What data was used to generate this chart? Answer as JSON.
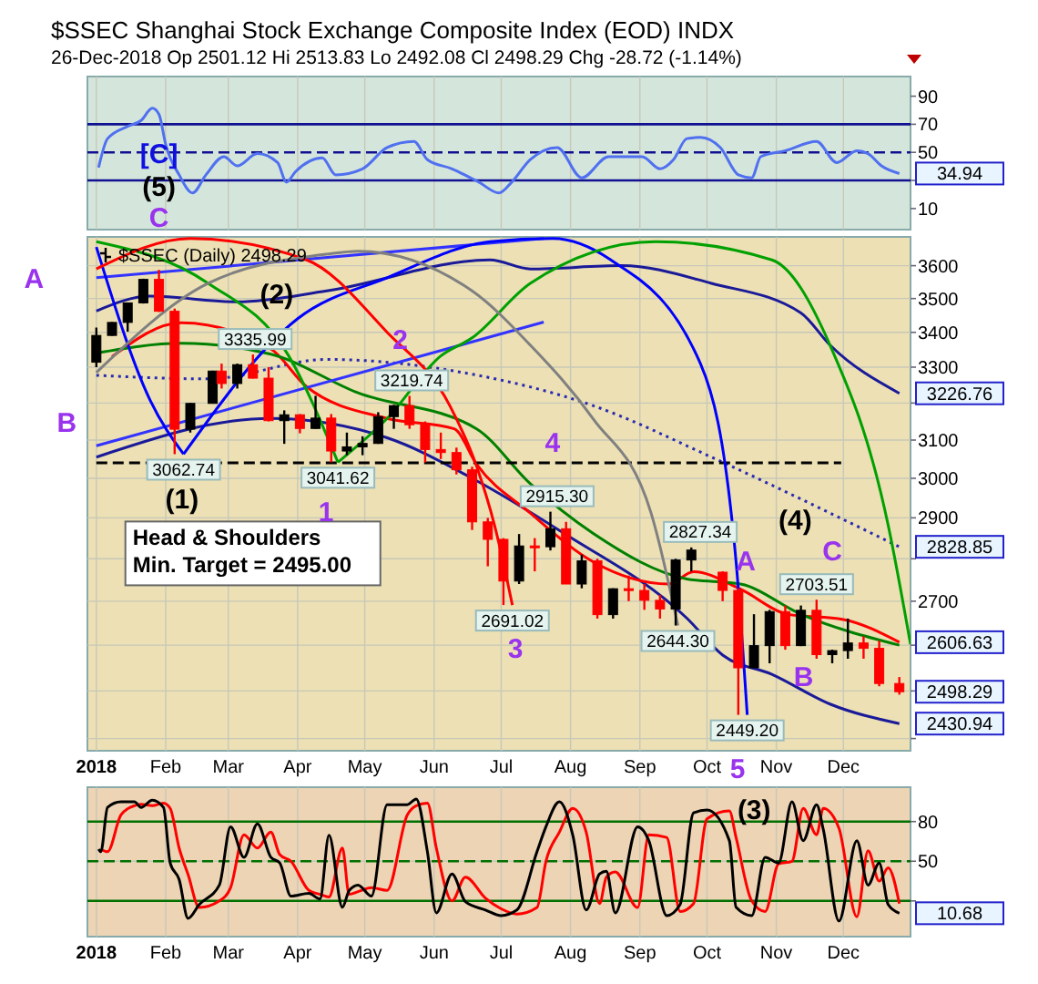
{
  "chart_data": [
    {
      "type": "line",
      "title": "$SSEC Shanghai Stock Exchange Composite Index (EOD)  INDX",
      "subtitle": "26-Dec-2018          Op 2501.12  Hi 2513.83  Lo 2492.08  Cl 2498.29  Chg -28.72 (-1.14%)",
      "xlim": [
        "2017-12-28",
        "2018-12-31"
      ],
      "ylim": [
        -5,
        104
      ],
      "yticks": [
        10,
        {
          "value": 30,
          "label": null
        },
        50,
        70,
        90
      ],
      "xticks": [
        {
          "value": "2018-01-01",
          "label": null
        },
        {
          "value": "2018-02-01",
          "label": null
        },
        {
          "value": "2018-03-01",
          "label": null
        },
        {
          "value": "2018-04-01",
          "label": null
        },
        {
          "value": "2018-05-01",
          "label": null
        },
        {
          "value": "2018-06-01",
          "label": null
        },
        {
          "value": "2018-07-01",
          "label": null
        },
        {
          "value": "2018-08-01",
          "label": null
        },
        {
          "value": "2018-09-01",
          "label": null
        },
        {
          "value": "2018-10-01",
          "label": null
        },
        {
          "value": "2018-11-01",
          "label": null
        },
        {
          "value": "2018-12-01",
          "label": null
        }
      ],
      "tick_labels": "y",
      "grid": "x",
      "ref_lines": [
        {
          "axis": "y",
          "value": 70,
          "color": "#101090"
        },
        {
          "axis": "y",
          "value": 30,
          "color": "#101090"
        },
        {
          "axis": "y",
          "value": 50,
          "color": "#101090",
          "line_style": "dashed"
        }
      ],
      "series": [
        {
          "color": "#5070f0",
          "x": [
            "2018-01-02",
            "2018-01-06",
            "2018-01-15",
            "2018-01-21",
            "2018-01-26",
            "2018-01-29",
            "2018-02-01",
            "2018-02-07",
            "2018-02-13",
            "2018-02-19",
            "2018-02-27",
            "2018-03-05",
            "2018-03-14",
            "2018-03-23",
            "2018-03-27",
            "2018-03-31",
            "2018-04-12",
            "2018-04-18",
            "2018-04-30",
            "2018-05-11",
            "2018-05-23",
            "2018-05-29",
            "2018-06-09",
            "2018-06-21",
            "2018-06-30",
            "2018-07-05",
            "2018-07-14",
            "2018-07-26",
            "2018-08-06",
            "2018-08-18",
            "2018-09-02",
            "2018-09-10",
            "2018-09-16",
            "2018-09-22",
            "2018-09-28",
            "2018-10-07",
            "2018-10-15",
            "2018-10-21",
            "2018-10-25",
            "2018-11-05",
            "2018-11-19",
            "2018-11-28",
            "2018-12-07",
            "2018-12-12",
            "2018-12-18",
            "2018-12-26"
          ],
          "values": [
            39.2,
            59.8,
            68.5,
            72.7,
            81.4,
            77.1,
            55.6,
            34.0,
            21.1,
            34.0,
            46.9,
            40.4,
            49.1,
            42.7,
            28.8,
            36.2,
            46.1,
            34.0,
            38.3,
            53.4,
            57.7,
            44.8,
            38.3,
            28.8,
            21.1,
            27.5,
            44.8,
            53.4,
            31.9,
            46.9,
            46.9,
            38.3,
            44.8,
            59.8,
            60.7,
            53.4,
            34.0,
            31.9,
            46.9,
            51.2,
            57.7,
            42.7,
            51.2,
            49.1,
            40.4,
            34.94
          ]
        }
      ],
      "annotations": [
        {
          "text": "34.94",
          "x": "2018-12-26",
          "y": 34.94
        },
        "[C]",
        "(5)",
        "C"
      ]
    },
    {
      "type": "candlestick",
      "log": true,
      "xlim": [
        "2017-12-28",
        "2018-12-31"
      ],
      "ylim": [
        2375,
        3690
      ],
      "yticks": [
        {
          "value": 2400,
          "label": null
        },
        {
          "value": 2500,
          "label": null
        },
        {
          "value": 2600,
          "label": null
        },
        2700,
        {
          "value": 2800,
          "label": null
        },
        2900,
        3000,
        3100,
        {
          "value": 3200,
          "label": null
        },
        3300,
        3400,
        3500,
        3600
      ],
      "xticks": [
        {
          "value": "2018-01-01",
          "label": "2018"
        },
        {
          "value": "2018-02-01",
          "label": "Feb"
        },
        {
          "value": "2018-03-01",
          "label": "Mar"
        },
        {
          "value": "2018-04-01",
          "label": "Apr"
        },
        {
          "value": "2018-05-01",
          "label": "May"
        },
        {
          "value": "2018-06-01",
          "label": "Jun"
        },
        {
          "value": "2018-07-01",
          "label": "Jul"
        },
        {
          "value": "2018-08-01",
          "label": "Aug"
        },
        {
          "value": "2018-09-01",
          "label": "Sep"
        },
        {
          "value": "2018-10-01",
          "label": "Oct"
        },
        {
          "value": "2018-11-01",
          "label": "Nov"
        },
        {
          "value": "2018-12-01",
          "label": "Dec"
        }
      ],
      "grid": true,
      "legend": "top left",
      "series": [
        {
          "name": "$SSEC (Daily) 2498.29",
          "color": "#000000",
          "x": [
            "2018-01-01",
            "2018-01-08",
            "2018-01-15",
            "2018-01-22",
            "2018-01-29",
            "2018-02-05",
            "2018-02-12",
            "2018-02-22",
            "2018-02-26",
            "2018-03-05",
            "2018-03-12",
            "2018-03-19",
            "2018-03-26",
            "2018-04-02",
            "2018-04-09",
            "2018-04-16",
            "2018-04-23",
            "2018-04-30",
            "2018-05-07",
            "2018-05-14",
            "2018-05-21",
            "2018-05-28",
            "2018-06-04",
            "2018-06-11",
            "2018-06-18",
            "2018-06-25",
            "2018-07-02",
            "2018-07-09",
            "2018-07-16",
            "2018-07-23",
            "2018-07-30",
            "2018-08-06",
            "2018-08-13",
            "2018-08-20",
            "2018-08-27",
            "2018-09-03",
            "2018-09-10",
            "2018-09-17",
            "2018-09-24",
            "2018-10-08",
            "2018-10-15",
            "2018-10-22",
            "2018-10-29",
            "2018-11-05",
            "2018-11-12",
            "2018-11-19",
            "2018-11-26",
            "2018-12-03",
            "2018-12-10",
            "2018-12-17",
            "2018-12-26"
          ],
          "ohlc": [
            [
              3314,
              3414,
              3300,
              3391
            ],
            [
              3391,
              3430,
              3390,
              3429
            ],
            [
              3429,
              3487,
              3402,
              3487
            ],
            [
              3487,
              3560,
              3485,
              3558
            ],
            [
              3558,
              3587,
              3460,
              3462
            ],
            [
              3462,
              3470,
              3062.74,
              3129
            ],
            [
              3129,
              3200,
              3120,
              3199
            ],
            [
              3199,
              3290,
              3199,
              3289
            ],
            [
              3289,
              3310,
              3240,
              3254
            ],
            [
              3254,
              3310,
              3240,
              3307
            ],
            [
              3307,
              3335.99,
              3268,
              3269
            ],
            [
              3269,
              3300,
              3150,
              3152
            ],
            [
              3152,
              3180,
              3090,
              3168
            ],
            [
              3168,
              3170,
              3118,
              3131
            ],
            [
              3131,
              3220,
              3130,
              3159
            ],
            [
              3159,
              3170,
              3041.62,
              3071
            ],
            [
              3071,
              3120,
              3060,
              3082
            ],
            [
              3082,
              3110,
              3060,
              3091
            ],
            [
              3091,
              3175,
              3090,
              3163
            ],
            [
              3163,
              3195,
              3130,
              3193
            ],
            [
              3193,
              3219.74,
              3130,
              3141
            ],
            [
              3141,
              3150,
              3041,
              3075
            ],
            [
              3075,
              3120,
              3050,
              3067
            ],
            [
              3067,
              3080,
              3010,
              3022
            ],
            [
              3022,
              3030,
              2870,
              2890
            ],
            [
              2890,
              2900,
              2782,
              2847
            ],
            [
              2847,
              2850,
              2691.02,
              2747
            ],
            [
              2747,
              2860,
              2740,
              2831
            ],
            [
              2831,
              2850,
              2770,
              2829
            ],
            [
              2829,
              2915.3,
              2820,
              2873
            ],
            [
              2873,
              2890,
              2740,
              2740
            ],
            [
              2740,
              2810,
              2730,
              2795
            ],
            [
              2795,
              2800,
              2660,
              2669
            ],
            [
              2669,
              2730,
              2660,
              2729
            ],
            [
              2729,
              2760,
              2700,
              2725
            ],
            [
              2725,
              2740,
              2680,
              2702
            ],
            [
              2702,
              2715,
              2660,
              2682
            ],
            [
              2682,
              2800,
              2644.3,
              2797
            ],
            [
              2797,
              2827.34,
              2770,
              2821
            ],
            [
              2768,
              2770,
              2700,
              2725
            ],
            [
              2725,
              2730,
              2449.2,
              2550
            ],
            [
              2550,
              2670,
              2550,
              2599
            ],
            [
              2599,
              2680,
              2560,
              2676
            ],
            [
              2676,
              2690,
              2590,
              2599
            ],
            [
              2599,
              2690,
              2598,
              2679
            ],
            [
              2679,
              2703.51,
              2570,
              2579
            ],
            [
              2579,
              2590,
              2560,
              2588
            ],
            [
              2588,
              2660,
              2570,
              2605
            ],
            [
              2605,
              2620,
              2570,
              2593
            ],
            [
              2593,
              2610,
              2510,
              2516
            ],
            [
              2516,
              2530,
              2492.08,
              2498.29
            ]
          ],
          "colors": [
            "#000000",
            "#000000",
            "#000000",
            "#000000",
            "#ff0000",
            "#ff0000",
            "#000000",
            "#000000",
            "#ff0000",
            "#000000",
            "#ff0000",
            "#ff0000",
            "#000000",
            "#ff0000",
            "#000000",
            "#ff0000",
            "#000000",
            "#000000",
            "#000000",
            "#000000",
            "#ff0000",
            "#ff0000",
            "#ff0000",
            "#ff0000",
            "#ff0000",
            "#ff0000",
            "#ff0000",
            "#000000",
            "#ff0000",
            "#000000",
            "#ff0000",
            "#000000",
            "#ff0000",
            "#000000",
            "#ff0000",
            "#ff0000",
            "#ff0000",
            "#000000",
            "#000000",
            "#ff0000",
            "#ff0000",
            "#000000",
            "#000000",
            "#ff0000",
            "#000000",
            "#ff0000",
            "#000000",
            "#000000",
            "#ff0000",
            "#ff0000",
            "#ff0000"
          ]
        },
        {
          "type": "line",
          "color": "#1a1a99",
          "x": [
            "2018-01-01",
            "2018-01-25",
            "2018-03-05",
            "2018-04-14",
            "2018-06-26",
            "2018-07-14",
            "2018-08-24",
            "2018-10-03",
            "2018-11-12",
            "2018-11-25",
            "2018-12-26"
          ],
          "values": [
            3463,
            3507,
            3490,
            3523,
            3618,
            3590,
            3600,
            3546,
            3457,
            3363,
            3226.76
          ]
        },
        {
          "type": "line",
          "color": "#2a2ab0",
          "line_style": "dotted",
          "x": [
            "2018-01-01",
            "2018-02-20",
            "2018-04-14",
            "2018-06-18",
            "2018-08-11",
            "2018-10-03",
            "2018-11-25",
            "2018-12-26"
          ],
          "values": [
            3277,
            3267,
            3322,
            3280,
            3193,
            3055,
            2912,
            2828.85
          ]
        },
        {
          "type": "line",
          "color": "#1a1a99",
          "x": [
            "2018-01-01",
            "2018-03-20",
            "2018-05-11",
            "2018-06-18",
            "2018-07-29",
            "2018-09-22",
            "2018-10-08",
            "2018-10-30",
            "2018-11-25",
            "2018-12-26"
          ],
          "values": [
            3055,
            3158,
            3106,
            3000,
            2862,
            2661,
            2578,
            2536,
            2472,
            2430.94
          ]
        },
        {
          "type": "line",
          "color": "#ff0000",
          "x": [
            "2018-01-08",
            "2018-02-08",
            "2018-03-20",
            "2018-04-05",
            "2018-05-11",
            "2018-06-10",
            "2018-06-20",
            "2018-07-14",
            "2018-08-11",
            "2018-09-14",
            "2018-09-25",
            "2018-10-16",
            "2018-11-06",
            "2018-12-01",
            "2018-12-26"
          ],
          "values": [
            3330,
            3428,
            3352,
            3245,
            3158,
            3130,
            3036,
            2912,
            2793,
            2740,
            2769,
            2728,
            2670,
            2658,
            2606.63
          ]
        },
        {
          "type": "line",
          "color": "#008000",
          "x": [
            "2018-01-01",
            "2018-02-08",
            "2018-03-20",
            "2018-04-28",
            "2018-06-20",
            "2018-07-14",
            "2018-08-11",
            "2018-09-22",
            "2018-10-16",
            "2018-11-12",
            "2018-12-26"
          ],
          "values": [
            3340,
            3368,
            3337,
            3228,
            3130,
            2986,
            2862,
            2752,
            2740,
            2670,
            2600
          ]
        },
        {
          "type": "line",
          "color": "#000000",
          "line_style": "dashed",
          "x": [
            "2018-01-01",
            "2018-11-30"
          ],
          "values": [
            3040,
            3040
          ]
        },
        {
          "type": "line",
          "color": "#3333ff",
          "x": [
            "2018-01-01",
            "2018-07-20"
          ],
          "values": [
            3563,
            3685
          ]
        },
        {
          "type": "line",
          "color": "#3333ff",
          "x": [
            "2018-01-01",
            "2018-07-20"
          ],
          "values": [
            3085,
            3430
          ]
        },
        {
          "type": "line",
          "color": "#0000ff",
          "x": [
            "2018-01-01",
            "2018-01-25",
            "2018-02-09"
          ],
          "values": [
            3658,
            3208,
            3062.74
          ]
        },
        {
          "type": "line",
          "color": "#0000ff",
          "x": [
            "2018-02-09",
            "2018-04-01",
            "2018-05-11",
            "2018-06-26",
            "2018-07-24",
            "2018-08-19",
            "2018-09-28",
            "2018-10-14",
            "2018-10-19"
          ],
          "values": [
            3062.74,
            3440,
            3563,
            3675,
            3685,
            3618,
            3311,
            2793,
            2449.2
          ]
        },
        {
          "type": "line",
          "color": "#00a000",
          "x": [
            "2018-01-01",
            "2018-02-20",
            "2018-03-28",
            "2018-04-19"
          ],
          "values": [
            3675,
            3546,
            3332,
            3041.62
          ]
        },
        {
          "type": "line",
          "color": "#00a000",
          "x": [
            "2018-04-19",
            "2018-05-11",
            "2018-06-04",
            "2018-06-18",
            "2018-07-14",
            "2018-09-08",
            "2018-10-30",
            "2018-11-25",
            "2018-12-21",
            "2018-12-31"
          ],
          "values": [
            3041.62,
            3158,
            3332,
            3384,
            3546,
            3675,
            3618,
            3363,
            2882,
            2602
          ]
        },
        {
          "type": "line",
          "color": "#ff0000",
          "x": [
            "2018-01-01",
            "2018-02-12",
            "2018-04-05",
            "2018-05-11",
            "2018-06-08",
            "2018-06-20",
            "2018-06-28",
            "2018-07-06"
          ],
          "values": [
            3590,
            3685,
            3618,
            3400,
            3193,
            3031,
            2882,
            2691.02
          ]
        },
        {
          "type": "line",
          "color": "#808080",
          "x": [
            "2018-01-01",
            "2018-02-20",
            "2018-04-14",
            "2018-04-28",
            "2018-06-18",
            "2018-07-14",
            "2018-08-11",
            "2018-09-06",
            "2018-09-18"
          ],
          "values": [
            3285,
            3546,
            3636,
            3645,
            3523,
            3363,
            3158,
            2912,
            2644.3
          ]
        }
      ],
      "annotations": [
        "Head & Shoulders\nMin. Target = 2495.00",
        "A",
        "B",
        "(2)",
        "(1)",
        "1",
        "2",
        "3",
        "4",
        "5",
        "(4)",
        "C",
        "A",
        "B",
        {
          "text": "3335.99",
          "x": "2018-03-13",
          "y": 3335.99
        },
        {
          "text": "3062.74",
          "x": "2018-02-09",
          "y": 3062.74
        },
        {
          "text": "3041.62",
          "x": "2018-04-19",
          "y": 3041.62
        },
        {
          "text": "3219.74",
          "x": "2018-05-22",
          "y": 3219.74
        },
        {
          "text": "2691.02",
          "x": "2018-07-06",
          "y": 2691.02
        },
        {
          "text": "2915.30",
          "x": "2018-07-26",
          "y": 2915.3
        },
        {
          "text": "2644.30",
          "x": "2018-09-18",
          "y": 2644.3
        },
        {
          "text": "2827.34",
          "x": "2018-09-28",
          "y": 2827.34
        },
        {
          "text": "2449.20",
          "x": "2018-10-19",
          "y": 2449.2
        },
        {
          "text": "2703.51",
          "x": "2018-11-19",
          "y": 2703.51
        },
        {
          "text": "3226.76",
          "x": "2018-12-26",
          "y": 3226.76
        },
        {
          "text": "2828.85",
          "x": "2018-12-26",
          "y": 2828.85
        },
        {
          "text": "2606.63",
          "x": "2018-12-26",
          "y": 2606.63
        },
        {
          "text": "2498.29",
          "x": "2018-12-26",
          "y": 2498.29
        },
        {
          "text": "2430.94",
          "x": "2018-12-26",
          "y": 2430.94
        }
      ]
    },
    {
      "type": "line",
      "xlim": [
        "2017-12-28",
        "2018-12-31"
      ],
      "ylim": [
        -7,
        106
      ],
      "yticks": [
        {
          "value": 20,
          "label": null
        },
        50,
        80
      ],
      "xticks": [
        {
          "value": "2018-01-01",
          "label": "2018"
        },
        {
          "value": "2018-02-01",
          "label": "Feb"
        },
        {
          "value": "2018-03-01",
          "label": "Mar"
        },
        {
          "value": "2018-04-01",
          "label": "Apr"
        },
        {
          "value": "2018-05-01",
          "label": "May"
        },
        {
          "value": "2018-06-01",
          "label": "Jun"
        },
        {
          "value": "2018-07-01",
          "label": "Jul"
        },
        {
          "value": "2018-08-01",
          "label": "Aug"
        },
        {
          "value": "2018-09-01",
          "label": "Sep"
        },
        {
          "value": "2018-10-01",
          "label": "Oct"
        },
        {
          "value": "2018-11-01",
          "label": "Nov"
        },
        {
          "value": "2018-12-01",
          "label": "Dec"
        }
      ],
      "grid": true,
      "ref_lines": [
        {
          "axis": "y",
          "value": 80,
          "color": "#007000"
        },
        {
          "axis": "y",
          "value": 20,
          "color": "#007000"
        },
        {
          "axis": "y",
          "value": 50,
          "color": "#007000",
          "line_style": "dashed"
        }
      ],
      "series": [
        {
          "color": "#ff0000",
          "x": [
            "2018-01-03",
            "2018-01-06",
            "2018-01-12",
            "2018-01-18",
            "2018-01-21",
            "2018-01-26",
            "2018-01-31",
            "2018-02-03",
            "2018-02-07",
            "2018-02-11",
            "2018-02-16",
            "2018-02-25",
            "2018-03-02",
            "2018-03-08",
            "2018-03-14",
            "2018-03-20",
            "2018-03-24",
            "2018-03-29",
            "2018-04-06",
            "2018-04-11",
            "2018-04-15",
            "2018-04-21",
            "2018-04-24",
            "2018-04-28",
            "2018-05-04",
            "2018-05-11",
            "2018-05-20",
            "2018-05-24",
            "2018-05-29",
            "2018-06-02",
            "2018-06-09",
            "2018-06-15",
            "2018-06-24",
            "2018-07-01",
            "2018-07-08",
            "2018-07-17",
            "2018-07-21",
            "2018-07-27",
            "2018-08-02",
            "2018-08-08",
            "2018-08-14",
            "2018-08-17",
            "2018-08-21",
            "2018-08-31",
            "2018-09-05",
            "2018-09-13",
            "2018-09-19",
            "2018-09-25",
            "2018-10-01",
            "2018-10-11",
            "2018-10-14",
            "2018-10-21",
            "2018-10-27",
            "2018-11-02",
            "2018-11-08",
            "2018-11-13",
            "2018-11-19",
            "2018-11-22",
            "2018-11-29",
            "2018-12-07",
            "2018-12-12",
            "2018-12-17",
            "2018-12-21",
            "2018-12-26"
          ],
          "values": [
            59.2,
            57.2,
            85,
            92,
            93,
            92,
            94,
            90,
            60,
            40,
            15,
            20,
            30,
            70,
            60,
            72,
            55,
            50,
            28,
            25,
            23,
            60,
            25,
            27,
            30,
            28,
            85,
            92,
            94,
            60,
            20,
            38,
            22,
            14,
            10,
            15,
            50,
            72,
            90,
            72,
            18,
            38,
            42,
            15,
            70,
            68,
            12,
            18,
            82,
            88,
            68,
            20,
            12,
            48,
            50,
            90,
            70,
            90,
            75,
            8,
            58,
            35,
            45,
            18
          ]
        },
        {
          "color": "#000000",
          "x": [
            "2018-01-02",
            "2018-01-03",
            "2018-01-06",
            "2018-01-12",
            "2018-01-18",
            "2018-01-21",
            "2018-01-26",
            "2018-01-31",
            "2018-02-03",
            "2018-02-07",
            "2018-02-11",
            "2018-02-16",
            "2018-02-25",
            "2018-03-02",
            "2018-03-08",
            "2018-03-14",
            "2018-03-20",
            "2018-03-24",
            "2018-03-29",
            "2018-04-06",
            "2018-04-11",
            "2018-04-15",
            "2018-04-21",
            "2018-04-24",
            "2018-04-28",
            "2018-05-04",
            "2018-05-11",
            "2018-05-20",
            "2018-05-24",
            "2018-05-29",
            "2018-06-02",
            "2018-06-09",
            "2018-06-15",
            "2018-06-24",
            "2018-07-01",
            "2018-07-08",
            "2018-07-17",
            "2018-07-21",
            "2018-07-27",
            "2018-08-02",
            "2018-08-08",
            "2018-08-14",
            "2018-08-17",
            "2018-08-21",
            "2018-08-31",
            "2018-09-05",
            "2018-09-13",
            "2018-09-19",
            "2018-09-25",
            "2018-10-01",
            "2018-10-11",
            "2018-10-14",
            "2018-10-21",
            "2018-10-27",
            "2018-11-02",
            "2018-11-08",
            "2018-11-13",
            "2018-11-19",
            "2018-11-22",
            "2018-11-29",
            "2018-12-07",
            "2018-12-12",
            "2018-12-17",
            "2018-12-21",
            "2018-12-26"
          ],
          "values": [
            59.2,
            57.2,
            90.7,
            94.9,
            94.9,
            90.7,
            96.2,
            90.7,
            48.7,
            36.2,
            6.8,
            17.3,
            32.0,
            76.1,
            53.0,
            78.2,
            53.0,
            48.7,
            23.6,
            25.7,
            21.5,
            69.7,
            15.2,
            27.8,
            32.0,
            23.6,
            92.8,
            92.8,
            97.1,
            57.2,
            11.0,
            40.4,
            19.4,
            13.1,
            8.9,
            13.1,
            57.2,
            76.1,
            94.9,
            69.7,
            13.1,
            40.4,
            42.5,
            11.0,
            76.1,
            65.6,
            8.9,
            17.3,
            86.6,
            88.7,
            65.6,
            15.2,
            8.9,
            53.0,
            48.7,
            94.9,
            65.6,
            92.8,
            74.0,
            4.8,
            65.6,
            32.0,
            48.7,
            17.3,
            10.68
          ]
        }
      ],
      "annotations": [
        {
          "text": "10.68",
          "x": "2018-12-26",
          "y": 10.68
        },
        "(3)"
      ]
    }
  ]
}
